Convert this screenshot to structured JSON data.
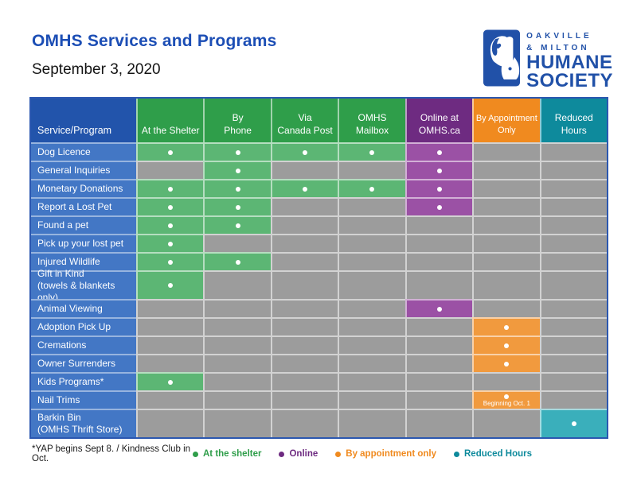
{
  "page": {
    "title": "OMHS Services and Programs",
    "date": "September 3, 2020"
  },
  "logo": {
    "org_line1": "OAKVILLE",
    "org_line2": "& MILTON",
    "org_line3": "HUMANE",
    "org_line4": "SOCIETY"
  },
  "palette": {
    "brand_blue": "#2151A8",
    "title_blue": "#1C4EB5",
    "corner_header_blue": "#2254AB",
    "row_label_blue": "#4377C5",
    "green_header": "#2F9E4A",
    "green_cell": "#5CB674",
    "purple_header": "#6E2B81",
    "purple_cell": "#9B51A5",
    "orange_header": "#F08A1F",
    "orange_cell": "#F19A3E",
    "teal_header": "#0E8A9C",
    "teal_cell": "#3AAFBB",
    "empty_cell_grey": "#9C9C9C"
  },
  "table": {
    "corner_header": "Service/Program",
    "columns": [
      {
        "key": "shelter",
        "label": "At the Shelter"
      },
      {
        "key": "phone",
        "label": "By\nPhone"
      },
      {
        "key": "post",
        "label": "Via\nCanada Post"
      },
      {
        "key": "mailbox",
        "label": "OMHS\nMailbox"
      },
      {
        "key": "online",
        "label": "Online at\nOMHS.ca"
      },
      {
        "key": "appointment",
        "label": "By Appointment\nOnly"
      },
      {
        "key": "reduced",
        "label": "Reduced\nHours"
      }
    ],
    "mark_types": {
      "s": "at-the-shelter",
      "o": "online",
      "a": "by-appointment-only",
      "r": "reduced-hours"
    },
    "rows": [
      {
        "label": "Dog Licence",
        "cells": [
          "s",
          "s",
          "s",
          "s",
          "o",
          "",
          ""
        ]
      },
      {
        "label": "General Inquiries",
        "cells": [
          "",
          "s",
          "",
          "",
          "o",
          "",
          ""
        ]
      },
      {
        "label": "Monetary Donations",
        "cells": [
          "s",
          "s",
          "s",
          "s",
          "o",
          "",
          ""
        ]
      },
      {
        "label": "Report a Lost Pet",
        "cells": [
          "s",
          "s",
          "",
          "",
          "o",
          "",
          ""
        ]
      },
      {
        "label": "Found a pet",
        "cells": [
          "s",
          "s",
          "",
          "",
          "",
          "",
          ""
        ]
      },
      {
        "label": "Pick up your lost pet",
        "cells": [
          "s",
          "",
          "",
          "",
          "",
          "",
          ""
        ]
      },
      {
        "label": "Injured Wildlife",
        "cells": [
          "s",
          "s",
          "",
          "",
          "",
          "",
          ""
        ]
      },
      {
        "label": "Gift in Kind\n(towels & blankets only)",
        "cells": [
          "s",
          "",
          "",
          "",
          "",
          "",
          ""
        ]
      },
      {
        "label": "Animal Viewing",
        "cells": [
          "",
          "",
          "",
          "",
          "o",
          "",
          ""
        ]
      },
      {
        "label": "Adoption Pick Up",
        "cells": [
          "",
          "",
          "",
          "",
          "",
          "a",
          ""
        ]
      },
      {
        "label": "Cremations",
        "cells": [
          "",
          "",
          "",
          "",
          "",
          "a",
          ""
        ]
      },
      {
        "label": "Owner Surrenders",
        "cells": [
          "",
          "",
          "",
          "",
          "",
          "a",
          ""
        ]
      },
      {
        "label": "Kids Programs*",
        "cells": [
          "s",
          "",
          "",
          "",
          "",
          "",
          ""
        ]
      },
      {
        "label": "Nail Trims",
        "cells": [
          "",
          "",
          "",
          "",
          "",
          "a",
          ""
        ],
        "note": {
          "col": 5,
          "text": "Beginning Oct. 1"
        }
      },
      {
        "label": "Barkin Bin\n(OMHS Thrift Store)",
        "cells": [
          "",
          "",
          "",
          "",
          "",
          "",
          "r"
        ]
      }
    ]
  },
  "footer": {
    "note": "*YAP begins Sept 8. / Kindness Club in Oct.",
    "legend": [
      {
        "label": "At the shelter",
        "color": "#2F9E4A"
      },
      {
        "label": "Online",
        "color": "#6E2B81"
      },
      {
        "label": "By appointment only",
        "color": "#F08A1F"
      },
      {
        "label": "Reduced Hours",
        "color": "#0E8A9C"
      }
    ]
  }
}
